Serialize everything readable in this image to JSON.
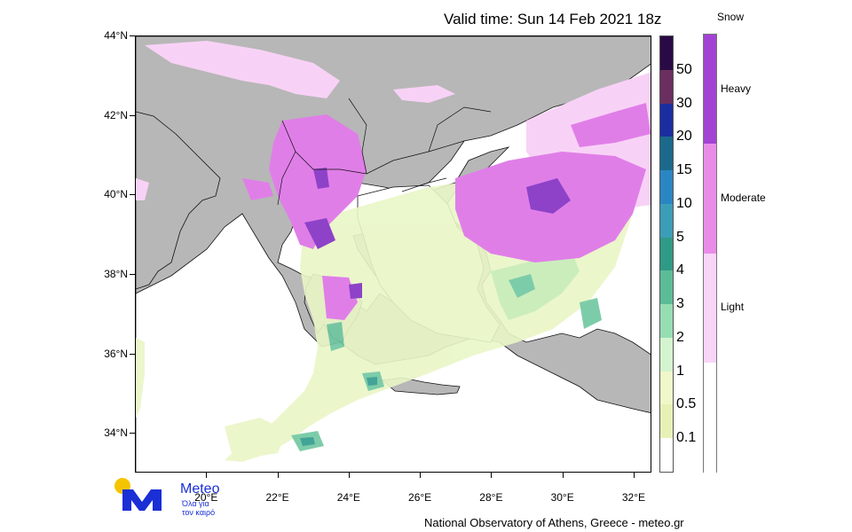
{
  "title": "Valid time: Sun 14 Feb 2021 18z",
  "footer": "National Observatory of Athens, Greece - meteo.gr",
  "logo": {
    "brand": "Meteo",
    "line1": "Όλα για",
    "line2": "τον καιρό"
  },
  "map": {
    "lat_range": [
      33,
      44
    ],
    "lon_range": [
      18,
      32.5
    ],
    "lat_ticks": [
      {
        "value": 44,
        "label": "44°N"
      },
      {
        "value": 42,
        "label": "42°N"
      },
      {
        "value": 40,
        "label": "40°N"
      },
      {
        "value": 38,
        "label": "38°N"
      },
      {
        "value": 36,
        "label": "36°N"
      },
      {
        "value": 34,
        "label": "34°N"
      }
    ],
    "lon_ticks": [
      {
        "value": 20,
        "label": "20°E"
      },
      {
        "value": 22,
        "label": "22°E"
      },
      {
        "value": 24,
        "label": "24°E"
      },
      {
        "value": 26,
        "label": "26°E"
      },
      {
        "value": 28,
        "label": "28°E"
      },
      {
        "value": 30,
        "label": "30°E"
      },
      {
        "value": 32,
        "label": "32°E"
      }
    ],
    "colors": {
      "sea": "#ffffff",
      "land": "#b7b7b7",
      "snow_light": "#f8d2f6",
      "snow_moderate": "#e07ee8",
      "snow_heavy": "#8d42c8",
      "rain_light": "#e9f6c6",
      "rain_medium": "#c6ecb5",
      "rain_high": "#6fc7a0",
      "rain_heavy": "#2e9a8c"
    }
  },
  "rain_legend": {
    "labels": [
      "50",
      "30",
      "20",
      "15",
      "10",
      "5",
      "4",
      "3",
      "2",
      "1",
      "0.5",
      "0.1"
    ],
    "colors": [
      "#2a0a45",
      "#6a2f5e",
      "#1b2ea0",
      "#1b6a8c",
      "#2a86c2",
      "#3c9db7",
      "#2f9a86",
      "#5cbc98",
      "#97ddb2",
      "#d4f4cf",
      "#f0f8c9",
      "#e7f1b6",
      "#ffffff"
    ]
  },
  "snow_legend": {
    "title": "Snow",
    "labels": [
      "Heavy",
      "Moderate",
      "Light"
    ],
    "colors": [
      "#a243d4",
      "#e98ce8",
      "#f9d5f7",
      "#ffffff"
    ]
  }
}
